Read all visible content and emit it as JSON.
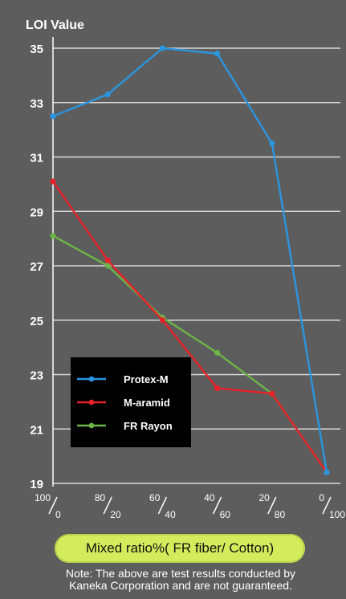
{
  "chart_data": {
    "type": "line",
    "ylabel": "LOI Value",
    "ylim": [
      19,
      35
    ],
    "yticks": [
      19,
      21,
      23,
      25,
      27,
      29,
      31,
      33,
      35
    ],
    "grid": true,
    "legend_position": "lower-left",
    "categories": [
      {
        "top": "100",
        "bottom": "0"
      },
      {
        "top": "80",
        "bottom": "20"
      },
      {
        "top": "60",
        "bottom": "40"
      },
      {
        "top": "40",
        "bottom": "60"
      },
      {
        "top": "20",
        "bottom": "80"
      },
      {
        "top": "0",
        "bottom": "100"
      }
    ],
    "series": [
      {
        "name": "Protex-M",
        "color": "#2b95df",
        "values": [
          32.5,
          33.3,
          35.0,
          34.8,
          31.5,
          19.4
        ]
      },
      {
        "name": "M-aramid",
        "color": "#e8222a",
        "values": [
          30.1,
          27.2,
          25.0,
          22.5,
          22.3,
          19.4
        ]
      },
      {
        "name": "FR Rayon",
        "color": "#6cb548",
        "values": [
          28.1,
          27.0,
          25.1,
          23.8,
          22.3,
          19.4
        ]
      }
    ]
  },
  "footer": {
    "xlabel": "Mixed ratio%( FR fiber/ Cotton)",
    "note_line1": "Note: The above are test results conducted by",
    "note_line2": "Kaneka Corporation and are not guaranteed."
  },
  "colors": {
    "background": "#5d5d5d",
    "grid": "#d9d9d9",
    "pill": "#d4ec5c"
  }
}
